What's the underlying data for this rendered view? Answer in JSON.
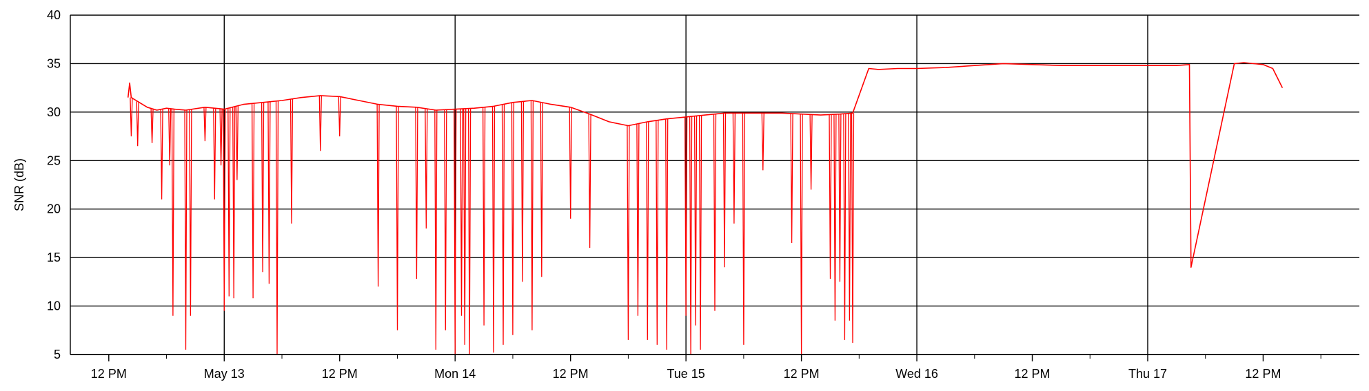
{
  "chart_data": {
    "type": "line",
    "ylabel": "SNR (dB)",
    "xlabel": "",
    "title": "",
    "ylim": [
      5,
      40
    ],
    "yticks": [
      5,
      10,
      15,
      20,
      25,
      30,
      35,
      40
    ],
    "xlim": [
      "2018-05-12 08:00",
      "2018-05-17 22:00"
    ],
    "xticks": [
      {
        "t": "2018-05-12 12:00",
        "label": "12 PM"
      },
      {
        "t": "2018-05-13 00:00",
        "label": "May 13"
      },
      {
        "t": "2018-05-13 12:00",
        "label": "12 PM"
      },
      {
        "t": "2018-05-14 00:00",
        "label": "Mon 14"
      },
      {
        "t": "2018-05-14 12:00",
        "label": "12 PM"
      },
      {
        "t": "2018-05-15 00:00",
        "label": "Tue 15"
      },
      {
        "t": "2018-05-15 12:00",
        "label": "12 PM"
      },
      {
        "t": "2018-05-16 00:00",
        "label": "Wed 16"
      },
      {
        "t": "2018-05-16 12:00",
        "label": "12 PM"
      },
      {
        "t": "2018-05-17 00:00",
        "label": "Thu 17"
      },
      {
        "t": "2018-05-17 12:00",
        "label": "12 PM"
      }
    ],
    "grid": true,
    "series": [
      {
        "color": "#ff0000",
        "x": [
          "2018-05-12 14:00",
          "2018-05-12 14:10",
          "2018-05-12 14:20",
          "2018-05-12 16:00",
          "2018-05-12 17:00",
          "2018-05-12 18:00",
          "2018-05-12 18:50",
          "2018-05-12 20:00",
          "2018-05-12 22:00",
          "2018-05-13 00:00",
          "2018-05-13 02:00",
          "2018-05-13 04:00",
          "2018-05-13 06:00",
          "2018-05-13 08:00",
          "2018-05-13 10:00",
          "2018-05-13 12:00",
          "2018-05-13 14:00",
          "2018-05-13 16:00",
          "2018-05-13 18:00",
          "2018-05-13 20:00",
          "2018-05-13 22:00",
          "2018-05-14 00:00",
          "2018-05-14 02:00",
          "2018-05-14 04:00",
          "2018-05-14 06:00",
          "2018-05-14 08:00",
          "2018-05-14 10:00",
          "2018-05-14 12:00",
          "2018-05-14 14:00",
          "2018-05-14 16:00",
          "2018-05-14 18:00",
          "2018-05-14 20:00",
          "2018-05-14 22:00",
          "2018-05-15 00:00",
          "2018-05-15 02:00",
          "2018-05-15 04:00",
          "2018-05-15 06:00",
          "2018-05-15 08:00",
          "2018-05-15 10:00",
          "2018-05-15 12:00",
          "2018-05-15 14:00",
          "2018-05-15 16:00",
          "2018-05-15 17:20",
          "2018-05-15 19:00",
          "2018-05-15 20:00",
          "2018-05-15 22:00",
          "2018-05-16 00:00",
          "2018-05-16 03:00",
          "2018-05-16 06:00",
          "2018-05-16 09:00",
          "2018-05-16 12:00",
          "2018-05-16 15:00",
          "2018-05-16 18:00",
          "2018-05-16 21:00",
          "2018-05-17 00:00",
          "2018-05-17 03:00",
          "2018-05-17 04:20",
          "2018-05-17 04:30",
          "2018-05-17 09:00",
          "2018-05-17 10:00",
          "2018-05-17 12:00",
          "2018-05-17 13:00",
          "2018-05-17 14:00"
        ],
        "y": [
          31.5,
          33,
          31.5,
          30.5,
          30.2,
          30.4,
          30.3,
          30.2,
          30.5,
          30.3,
          30.8,
          31,
          31.2,
          31.5,
          31.7,
          31.6,
          31.2,
          30.8,
          30.6,
          30.5,
          30.2,
          30.3,
          30.4,
          30.6,
          31,
          31.2,
          30.8,
          30.5,
          29.8,
          29,
          28.6,
          29,
          29.3,
          29.5,
          29.7,
          29.9,
          29.9,
          29.9,
          29.9,
          29.8,
          29.7,
          29.8,
          29.9,
          34.5,
          34.4,
          34.5,
          34.5,
          34.6,
          34.8,
          35,
          34.9,
          34.8,
          34.8,
          34.8,
          34.8,
          34.8,
          34.9,
          14,
          35,
          35.1,
          34.9,
          34.5,
          32.5
        ]
      }
    ],
    "dropouts": [
      {
        "t": "2018-05-12 14:20",
        "y": 27.5
      },
      {
        "t": "2018-05-12 15:00",
        "y": 26.5
      },
      {
        "t": "2018-05-12 16:30",
        "y": 26.8
      },
      {
        "t": "2018-05-12 17:30",
        "y": 21
      },
      {
        "t": "2018-05-12 18:20",
        "y": 24.5
      },
      {
        "t": "2018-05-12 18:40",
        "y": 9
      },
      {
        "t": "2018-05-12 20:00",
        "y": 5.5
      },
      {
        "t": "2018-05-12 20:30",
        "y": 9
      },
      {
        "t": "2018-05-12 22:00",
        "y": 27
      },
      {
        "t": "2018-05-12 23:00",
        "y": 21
      },
      {
        "t": "2018-05-12 23:40",
        "y": 24.5
      },
      {
        "t": "2018-05-13 00:00",
        "y": 9.5
      },
      {
        "t": "2018-05-13 00:30",
        "y": 11
      },
      {
        "t": "2018-05-13 01:00",
        "y": 10.8
      },
      {
        "t": "2018-05-13 01:20",
        "y": 23
      },
      {
        "t": "2018-05-13 03:00",
        "y": 10.8
      },
      {
        "t": "2018-05-13 04:00",
        "y": 13.5
      },
      {
        "t": "2018-05-13 04:40",
        "y": 12.3
      },
      {
        "t": "2018-05-13 05:30",
        "y": 5
      },
      {
        "t": "2018-05-13 07:00",
        "y": 18.5
      },
      {
        "t": "2018-05-13 10:00",
        "y": 26
      },
      {
        "t": "2018-05-13 12:00",
        "y": 27.5
      },
      {
        "t": "2018-05-13 16:00",
        "y": 12
      },
      {
        "t": "2018-05-13 18:00",
        "y": 7.5
      },
      {
        "t": "2018-05-13 20:00",
        "y": 12.8
      },
      {
        "t": "2018-05-13 21:00",
        "y": 18
      },
      {
        "t": "2018-05-13 22:00",
        "y": 5.5
      },
      {
        "t": "2018-05-13 23:00",
        "y": 7.5
      },
      {
        "t": "2018-05-14 00:00",
        "y": 5
      },
      {
        "t": "2018-05-14 00:40",
        "y": 9
      },
      {
        "t": "2018-05-14 01:00",
        "y": 6
      },
      {
        "t": "2018-05-14 01:30",
        "y": 5
      },
      {
        "t": "2018-05-14 03:00",
        "y": 8
      },
      {
        "t": "2018-05-14 04:00",
        "y": 5.2
      },
      {
        "t": "2018-05-14 05:00",
        "y": 6
      },
      {
        "t": "2018-05-14 06:00",
        "y": 7
      },
      {
        "t": "2018-05-14 07:00",
        "y": 12.5
      },
      {
        "t": "2018-05-14 08:00",
        "y": 7.5
      },
      {
        "t": "2018-05-14 09:00",
        "y": 13
      },
      {
        "t": "2018-05-14 12:00",
        "y": 19
      },
      {
        "t": "2018-05-14 14:00",
        "y": 16
      },
      {
        "t": "2018-05-14 18:00",
        "y": 6.5
      },
      {
        "t": "2018-05-14 19:00",
        "y": 9
      },
      {
        "t": "2018-05-14 20:00",
        "y": 6.5
      },
      {
        "t": "2018-05-14 21:00",
        "y": 6
      },
      {
        "t": "2018-05-14 22:00",
        "y": 5.5
      },
      {
        "t": "2018-05-15 00:00",
        "y": 9
      },
      {
        "t": "2018-05-15 00:30",
        "y": 5
      },
      {
        "t": "2018-05-15 01:00",
        "y": 8
      },
      {
        "t": "2018-05-15 01:30",
        "y": 5.5
      },
      {
        "t": "2018-05-15 03:00",
        "y": 9.5
      },
      {
        "t": "2018-05-15 04:00",
        "y": 14
      },
      {
        "t": "2018-05-15 05:00",
        "y": 18.5
      },
      {
        "t": "2018-05-15 06:00",
        "y": 6
      },
      {
        "t": "2018-05-15 08:00",
        "y": 24
      },
      {
        "t": "2018-05-15 11:00",
        "y": 16.5
      },
      {
        "t": "2018-05-15 12:00",
        "y": 5
      },
      {
        "t": "2018-05-15 13:00",
        "y": 22
      },
      {
        "t": "2018-05-15 15:00",
        "y": 12.8
      },
      {
        "t": "2018-05-15 15:30",
        "y": 8.5
      },
      {
        "t": "2018-05-15 16:00",
        "y": 12.5
      },
      {
        "t": "2018-05-15 16:30",
        "y": 6.5
      },
      {
        "t": "2018-05-15 17:00",
        "y": 8.5
      },
      {
        "t": "2018-05-15 17:20",
        "y": 6.2
      }
    ]
  }
}
